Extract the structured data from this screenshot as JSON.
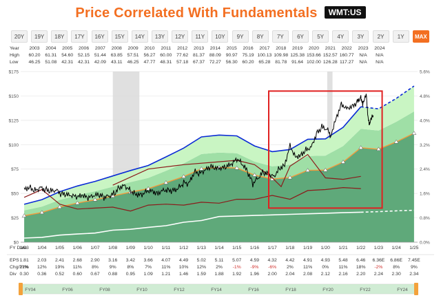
{
  "header": {
    "title": "Price Correlated With Fundamentals",
    "ticker": "WMT:US"
  },
  "range_buttons": [
    "20Y",
    "19Y",
    "18Y",
    "17Y",
    "16Y",
    "15Y",
    "14Y",
    "13Y",
    "12Y",
    "11Y",
    "10Y",
    "9Y",
    "8Y",
    "7Y",
    "6Y",
    "5Y",
    "4Y",
    "3Y",
    "2Y",
    "1Y",
    "MAX"
  ],
  "active_range": "MAX",
  "colors": {
    "accent": "#f36f21",
    "price": "#000000",
    "earnings_line": "#0a2ad6",
    "normal_pe": "#ffffff",
    "dividend_line": "#ffffff",
    "pe_line": "#8b1a1a",
    "highlight_box": "#e02020",
    "recession": "#d8d8d8"
  },
  "chart_data": {
    "type": "line",
    "x": [
      2003,
      2004,
      2005,
      2006,
      2007,
      2008,
      2009,
      2010,
      2011,
      2012,
      2013,
      2014,
      2015,
      2016,
      2017,
      2018,
      2019,
      2020,
      2021,
      2022,
      2023,
      2024,
      2025
    ],
    "years": [
      "Year",
      "2003",
      "2004",
      "2005",
      "2006",
      "2007",
      "2008",
      "2009",
      "2010",
      "2011",
      "2012",
      "2013",
      "2014",
      "2015",
      "2016",
      "2017",
      "2018",
      "2019",
      "2020",
      "2021",
      "2022",
      "2023",
      "2024"
    ],
    "high": [
      "High",
      "60.20",
      "61.31",
      "54.60",
      "52.15",
      "51.44",
      "63.85",
      "57.51",
      "56.27",
      "60.00",
      "77.62",
      "81.37",
      "88.09",
      "90.97",
      "75.19",
      "100.13",
      "109.98",
      "125.38",
      "153.66",
      "152.57",
      "160.77",
      "N/A",
      "N/A"
    ],
    "low": [
      "Low",
      "46.25",
      "51.08",
      "42.31",
      "42.31",
      "42.09",
      "43.11",
      "46.25",
      "47.77",
      "48.31",
      "57.18",
      "67.37",
      "72.27",
      "56.30",
      "60.20",
      "65.28",
      "81.78",
      "91.64",
      "102.00",
      "126.28",
      "117.27",
      "N/A",
      "N/A"
    ],
    "fy_dates": [
      "FY Date",
      "1/03",
      "1/04",
      "1/05",
      "1/06",
      "1/07",
      "1/08",
      "1/09",
      "1/10",
      "1/11",
      "1/12",
      "1/13",
      "1/14",
      "1/15",
      "1/16",
      "1/17",
      "1/18",
      "1/19",
      "1/20",
      "1/21",
      "1/22",
      "1/23",
      "1/24",
      "1/25"
    ],
    "eps_display": [
      "EPS",
      "1.81",
      "2.03",
      "2.41",
      "2.68",
      "2.90",
      "3.16",
      "3.42",
      "3.66",
      "4.07",
      "4.49",
      "5.02",
      "5.11",
      "5.07",
      "4.59",
      "4.32",
      "4.42",
      "4.91",
      "4.93",
      "5.48",
      "6.46",
      "6.36E",
      "6.86E",
      "7.45E"
    ],
    "chg_display": [
      "Chg/Yr%",
      "21%",
      "12%",
      "19%",
      "11%",
      "8%",
      "9%",
      "8%",
      "7%",
      "11%",
      "10%",
      "12%",
      "2%",
      "-1%",
      "-9%",
      "-6%",
      "2%",
      "11%",
      "0%",
      "11%",
      "18%",
      "-2%",
      "8%",
      "9%"
    ],
    "div_display": [
      "Div",
      "0.30",
      "0.36",
      "0.52",
      "0.60",
      "0.67",
      "0.88",
      "0.95",
      "1.09",
      "1.21",
      "1.46",
      "1.59",
      "1.88",
      "1.92",
      "1.96",
      "2.00",
      "2.04",
      "2.08",
      "2.12",
      "2.16",
      "2.20",
      "2.24",
      "2.30",
      "2.34"
    ],
    "eps": [
      1.81,
      2.03,
      2.41,
      2.68,
      2.9,
      3.16,
      3.42,
      3.66,
      4.07,
      4.49,
      5.02,
      5.11,
      5.07,
      4.59,
      4.32,
      4.42,
      4.91,
      4.93,
      5.48,
      6.46,
      6.36,
      6.86,
      7.45
    ],
    "dividends": [
      0.3,
      0.36,
      0.52,
      0.6,
      0.67,
      0.88,
      0.95,
      1.09,
      1.21,
      1.46,
      1.59,
      1.88,
      1.92,
      1.96,
      2.0,
      2.04,
      2.08,
      2.12,
      2.16,
      2.2,
      2.24,
      2.3,
      2.34
    ],
    "pe_ratio_points": [
      [
        2003,
        2.3
      ],
      [
        2004,
        2.7
      ],
      [
        2005,
        1.95
      ],
      [
        2006,
        1.7
      ],
      [
        2007,
        1.75
      ],
      [
        2008,
        1.8
      ],
      [
        2009,
        1.6
      ],
      [
        2010,
        1.9
      ],
      [
        2011,
        1.95
      ],
      [
        2012,
        1.9
      ],
      [
        2013,
        2.05
      ],
      [
        2014,
        2.0
      ],
      [
        2015,
        2.2
      ],
      [
        2016,
        2.2
      ],
      [
        2017,
        2.4
      ],
      [
        2018,
        2.2
      ],
      [
        2019,
        2.65
      ],
      [
        2020,
        2.7
      ],
      [
        2021,
        2.8
      ],
      [
        2022,
        2.75
      ]
    ],
    "pe_line_2_points": [
      [
        2008,
        1.95
      ],
      [
        2010,
        2.5
      ],
      [
        2012,
        2.65
      ],
      [
        2014,
        2.75
      ],
      [
        2015,
        2.8
      ],
      [
        2016,
        2.65
      ],
      [
        2017,
        2.2
      ],
      [
        2017.5,
        1.9
      ],
      [
        2018,
        2.6
      ],
      [
        2019,
        3.0
      ],
      [
        2020,
        2.2
      ],
      [
        2021,
        2.15
      ],
      [
        2022,
        2.25
      ]
    ],
    "price_series": [
      [
        2003.0,
        55
      ],
      [
        2003.3,
        57
      ],
      [
        2003.6,
        53
      ],
      [
        2003.9,
        56
      ],
      [
        2004.2,
        54
      ],
      [
        2004.5,
        52
      ],
      [
        2004.8,
        53
      ],
      [
        2005.1,
        49
      ],
      [
        2005.4,
        48
      ],
      [
        2005.7,
        47
      ],
      [
        2006.0,
        46
      ],
      [
        2006.3,
        47
      ],
      [
        2006.6,
        45
      ],
      [
        2006.9,
        47
      ],
      [
        2007.2,
        48
      ],
      [
        2007.5,
        46
      ],
      [
        2007.8,
        47
      ],
      [
        2008.1,
        50
      ],
      [
        2008.4,
        57
      ],
      [
        2008.7,
        58
      ],
      [
        2009.0,
        53
      ],
      [
        2009.3,
        50
      ],
      [
        2009.6,
        49
      ],
      [
        2009.9,
        53
      ],
      [
        2010.2,
        54
      ],
      [
        2010.5,
        50
      ],
      [
        2010.8,
        54
      ],
      [
        2011.1,
        54
      ],
      [
        2011.4,
        53
      ],
      [
        2011.7,
        56
      ],
      [
        2012.0,
        61
      ],
      [
        2012.3,
        60
      ],
      [
        2012.6,
        72
      ],
      [
        2012.9,
        70
      ],
      [
        2013.2,
        73
      ],
      [
        2013.5,
        77
      ],
      [
        2013.8,
        75
      ],
      [
        2014.1,
        75
      ],
      [
        2014.4,
        77
      ],
      [
        2014.7,
        79
      ],
      [
        2015.0,
        85
      ],
      [
        2015.3,
        80
      ],
      [
        2015.6,
        72
      ],
      [
        2015.9,
        60
      ],
      [
        2016.2,
        66
      ],
      [
        2016.5,
        72
      ],
      [
        2016.8,
        70
      ],
      [
        2017.1,
        68
      ],
      [
        2017.4,
        76
      ],
      [
        2017.7,
        80
      ],
      [
        2018.0,
        100
      ],
      [
        2018.3,
        88
      ],
      [
        2018.6,
        90
      ],
      [
        2018.9,
        95
      ],
      [
        2019.2,
        98
      ],
      [
        2019.5,
        112
      ],
      [
        2019.8,
        118
      ],
      [
        2020.1,
        116
      ],
      [
        2020.3,
        110
      ],
      [
        2020.6,
        128
      ],
      [
        2020.9,
        142
      ],
      [
        2021.2,
        138
      ],
      [
        2021.5,
        140
      ],
      [
        2021.8,
        144
      ],
      [
        2022.0,
        150
      ],
      [
        2022.1,
        140
      ],
      [
        2022.3,
        155
      ],
      [
        2022.4,
        127
      ],
      [
        2022.5,
        122
      ],
      [
        2022.7,
        130
      ]
    ],
    "y_left": [
      "$0",
      "$25",
      "$50",
      "$75",
      "$100",
      "$125",
      "$150",
      "$175"
    ],
    "y_right": [
      "0.0%",
      "0.8%",
      "1.6%",
      "2.4%",
      "3.2%",
      "4.0%",
      "4.8%",
      "5.6%"
    ],
    "ylim": [
      0,
      175
    ],
    "legend_strip": [
      "FY04",
      "FY06",
      "FY08",
      "FY10",
      "FY12",
      "FY14",
      "FY16",
      "FY18",
      "FY20",
      "FY22",
      "FY24"
    ]
  }
}
